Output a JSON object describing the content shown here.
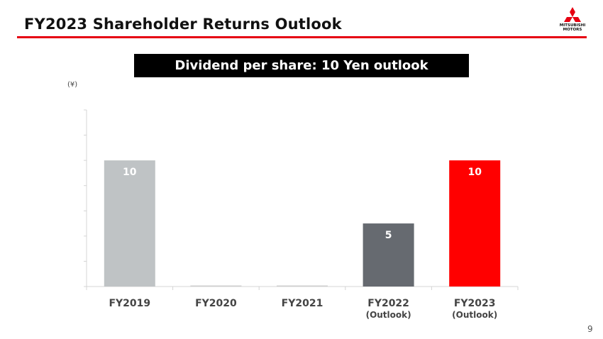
{
  "slide": {
    "title": "FY2023 Shareholder Returns Outlook",
    "page_number": "9",
    "accent_color": "#e60012"
  },
  "logo": {
    "text_line1": "MITSUBISHI",
    "text_line2": "MOTORS",
    "color": "#e60012"
  },
  "banner": {
    "text": "Dividend per share: 10 Yen outlook"
  },
  "chart_data": {
    "type": "bar",
    "title": "",
    "xlabel": "",
    "ylabel": "(¥)",
    "ylim": [
      0,
      14
    ],
    "grid": false,
    "categories": [
      {
        "label": "FY2019",
        "sublabel": ""
      },
      {
        "label": "FY2020",
        "sublabel": ""
      },
      {
        "label": "FY2021",
        "sublabel": ""
      },
      {
        "label": "FY2022",
        "sublabel": "(Outlook)"
      },
      {
        "label": "FY2023",
        "sublabel": "(Outlook)"
      }
    ],
    "values": [
      10,
      0,
      0,
      5,
      10
    ],
    "data_labels": [
      "10",
      "",
      "",
      "5",
      "10"
    ],
    "bar_colors": [
      "#bfc3c5",
      "#cfcfcf",
      "#cfcfcf",
      "#666a70",
      "#ff0000"
    ]
  }
}
